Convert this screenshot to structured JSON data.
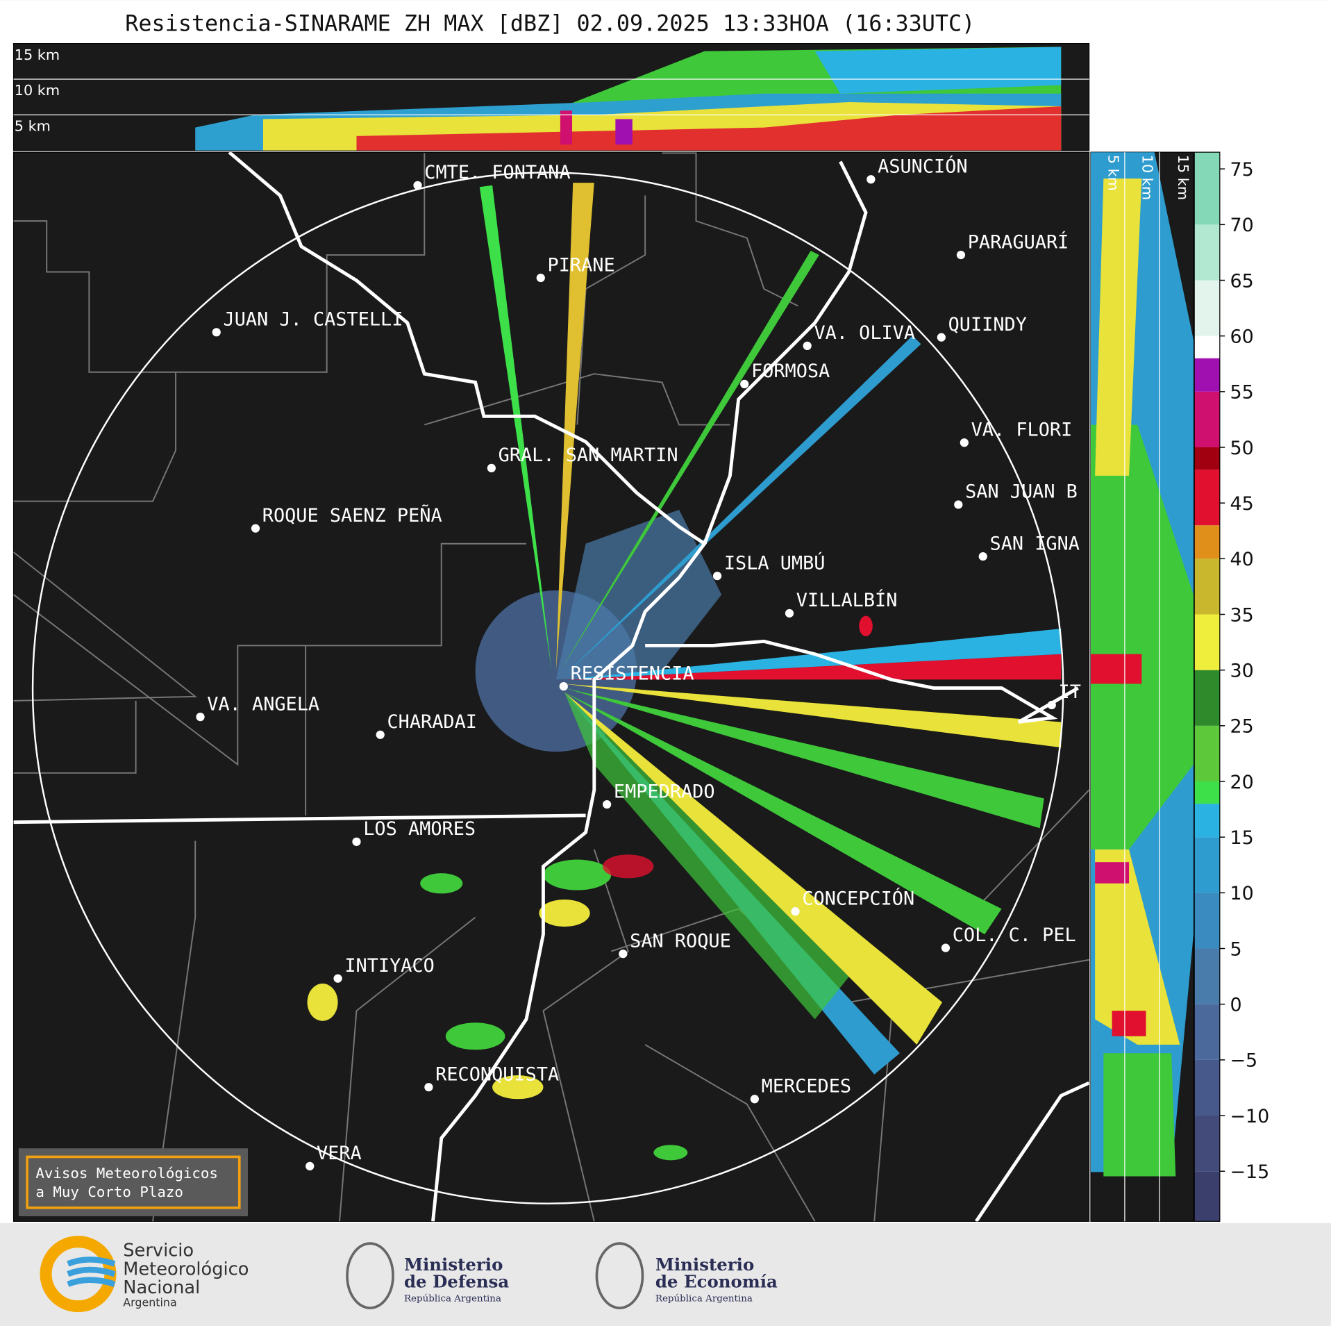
{
  "title": "Resistencia-SINARAME ZH MAX [dBZ] 02.09.2025 13:33HOA (16:33UTC)",
  "top_section": {
    "labels": [
      "15 km",
      "10 km",
      "5 km"
    ]
  },
  "side_section": {
    "labels": [
      "5 km",
      "10 km",
      "15 km"
    ]
  },
  "cities": [
    "CMTE. FONTANA",
    "PIRANE",
    "JUAN J. CASTELLI",
    "VA. OLIVA",
    "QUIINDY",
    "FORMOSA",
    "ASUNCIÓN",
    "PARAGUARÍ",
    "VA. FLORI",
    "GRAL. SAN MARTIN",
    "SAN JUAN B",
    "ROQUE SAENZ PEÑA",
    "SAN IGNA",
    "ISLA UMBÚ",
    "VILLALBÍN",
    "RESISTENCIA",
    "VA. ANGELA",
    "CHARADAI",
    "IT",
    "EMPEDRADO",
    "LOS AMORES",
    "CONCEPCIÓN",
    "COL. C. PEL",
    "SAN ROQUE",
    "INTIYACO",
    "RECONQUISTA",
    "MERCEDES",
    "VERA"
  ],
  "notice": {
    "lines": [
      "Avisos Meteorológicos",
      "a Muy Corto Plazo"
    ]
  },
  "colorbar": {
    "ylim": [
      -19.5,
      76.5
    ],
    "yticks": [
      75,
      70,
      65,
      60,
      55,
      50,
      45,
      40,
      35,
      30,
      25,
      20,
      15,
      10,
      5,
      0,
      {
        "value": -5,
        "label": "−5"
      },
      {
        "value": -10,
        "label": "−10"
      },
      {
        "value": -15,
        "label": "−15"
      }
    ],
    "bands": [
      {
        "from": -19.5,
        "to": -15,
        "color": "#3b3f6c"
      },
      {
        "from": -15,
        "to": -10,
        "color": "#424b7a"
      },
      {
        "from": -10,
        "to": -5,
        "color": "#47588a"
      },
      {
        "from": -5,
        "to": 0,
        "color": "#4b6a9b"
      },
      {
        "from": 0,
        "to": 5,
        "color": "#4a7cab"
      },
      {
        "from": 5,
        "to": 10,
        "color": "#3a8cc0"
      },
      {
        "from": 10,
        "to": 15,
        "color": "#2e9ccf"
      },
      {
        "from": 15,
        "to": 18,
        "color": "#2ab3e2"
      },
      {
        "from": 18,
        "to": 20,
        "color": "#3ee04a"
      },
      {
        "from": 20,
        "to": 25,
        "color": "#5cc83a"
      },
      {
        "from": 25,
        "to": 30,
        "color": "#2e8a2a"
      },
      {
        "from": 30,
        "to": 35,
        "color": "#f0ee3c"
      },
      {
        "from": 35,
        "to": 40,
        "color": "#c9b82e"
      },
      {
        "from": 40,
        "to": 43,
        "color": "#e0901a"
      },
      {
        "from": 43,
        "to": 48,
        "color": "#e0102e"
      },
      {
        "from": 48,
        "to": 50,
        "color": "#a00010"
      },
      {
        "from": 50,
        "to": 55,
        "color": "#d0106e"
      },
      {
        "from": 55,
        "to": 58,
        "color": "#a010b0"
      },
      {
        "from": 58,
        "to": 60,
        "color": "#ffffff"
      },
      {
        "from": 60,
        "to": 65,
        "color": "#e2f4ec"
      },
      {
        "from": 65,
        "to": 70,
        "color": "#b2e8d2"
      },
      {
        "from": 70,
        "to": 76.5,
        "color": "#84d8b8"
      }
    ]
  },
  "footer": {
    "smn": [
      "Servicio",
      "Meteorológico",
      "Nacional",
      "Argentina"
    ],
    "defensa": [
      "Ministerio",
      "de Defensa",
      "República Argentina"
    ],
    "economia": [
      "Ministerio",
      "de Economía",
      "República Argentina"
    ]
  }
}
